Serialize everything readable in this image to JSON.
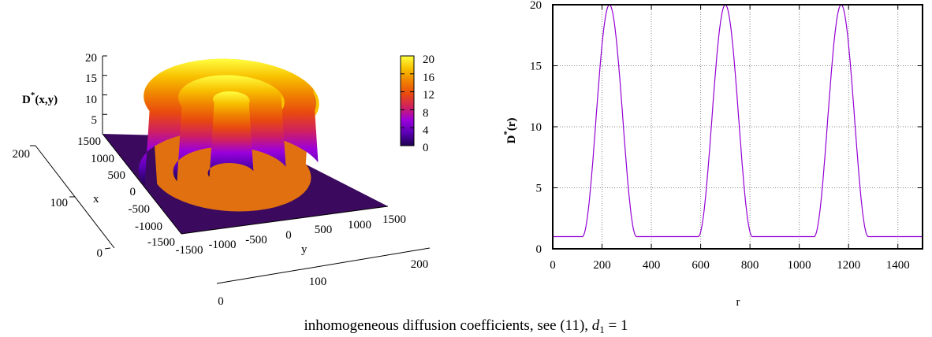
{
  "caption": {
    "text": "inhomogeneous diffusion coefficients, see (11), ",
    "math_var": "d",
    "math_sub": "1",
    "math_rest": " = 1"
  },
  "chart_data": [
    {
      "type": "surface",
      "zlabel": "D*(x,y)",
      "zlabel_base": "D",
      "zlabel_sup": "*",
      "zlabel_rest": "(x,y)",
      "xlabel": "x",
      "ylabel": "y",
      "x_ticks": [
        "1500",
        "1000",
        "500",
        "0",
        "-500",
        "-1000",
        "-1500"
      ],
      "y_ticks": [
        "-1500",
        "-1000",
        "-500",
        "0",
        "500",
        "1000",
        "1500"
      ],
      "z_ticks": [
        "5",
        "10",
        "15",
        "20"
      ],
      "base_left_ticks": [
        "200",
        "100",
        "0"
      ],
      "base_bottom_ticks": [
        "0",
        "100",
        "200"
      ],
      "xlim": [
        -1500,
        1500
      ],
      "ylim": [
        -1500,
        1500
      ],
      "zlim": [
        0,
        20
      ],
      "colorbar": {
        "ticks": [
          "20",
          "16",
          "12",
          "8",
          "4",
          "0"
        ],
        "range": [
          0,
          20
        ],
        "colors": [
          "#1e0050",
          "#5a00b4",
          "#9b00dc",
          "#d02060",
          "#e84810",
          "#f08000",
          "#f8c000",
          "#ffff40"
        ]
      },
      "peaks_r": [
        230,
        700,
        1170
      ],
      "peak_value": 20,
      "base_value": 1
    },
    {
      "type": "line",
      "ylabel": "D*(r)",
      "ylabel_base": "D",
      "ylabel_sup": "*",
      "ylabel_rest": "(r)",
      "xlabel": "r",
      "xlim": [
        0,
        1500
      ],
      "ylim": [
        0,
        20
      ],
      "x_ticks": [
        "0",
        "200",
        "400",
        "600",
        "800",
        "1000",
        "1200",
        "1400"
      ],
      "y_ticks": [
        "0",
        "5",
        "10",
        "15",
        "20"
      ],
      "grid": true,
      "series": [
        {
          "color": "#9400d3",
          "peaks_r": [
            230,
            700,
            1170
          ],
          "peak_value": 20,
          "base_value": 1,
          "plateau_end_left_r": [
            120,
            590,
            1060
          ],
          "plateau_start_right_r": [
            340,
            810,
            1280
          ]
        }
      ]
    }
  ]
}
